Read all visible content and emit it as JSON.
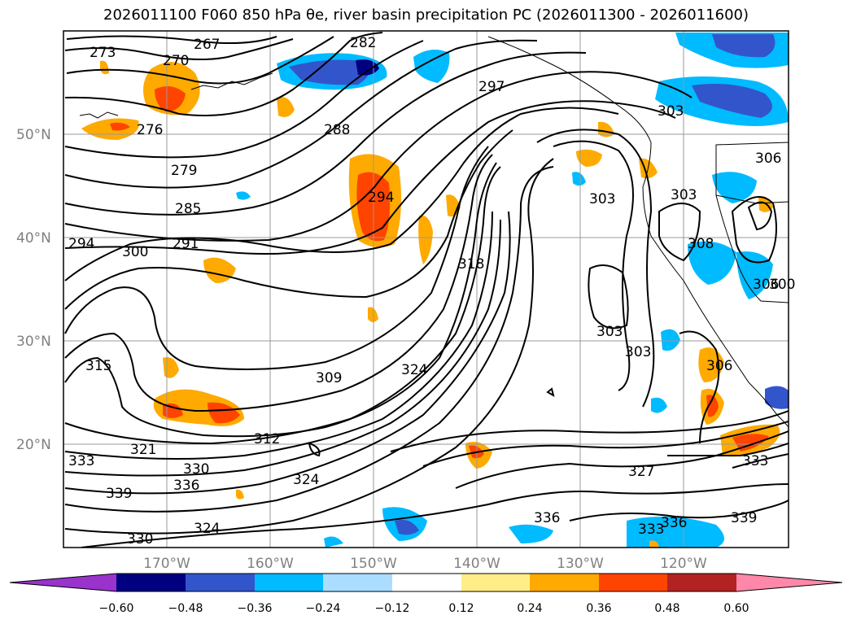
{
  "title": "2026011100 F060 850 hPa θe, river basin precipitation PC (2026011300 - 2026011600)",
  "latitude_labels": [
    "50°N",
    "40°N",
    "30°N",
    "20°N"
  ],
  "longitude_labels": [
    "170°W",
    "160°W",
    "150°W",
    "140°W",
    "130°W",
    "120°W"
  ],
  "contour_labels": [
    "267",
    "270",
    "273",
    "276",
    "279",
    "282",
    "285",
    "288",
    "291",
    "294",
    "294",
    "297",
    "300",
    "303",
    "303",
    "303",
    "303",
    "303",
    "306",
    "306",
    "308",
    "309",
    "312",
    "315",
    "318",
    "321",
    "324",
    "324",
    "324",
    "327",
    "330",
    "330",
    "333",
    "333",
    "333",
    "336",
    "336",
    "336",
    "339",
    "339",
    "300",
    "306"
  ],
  "colorbar": {
    "ticks": [
      "−0.60",
      "−0.48",
      "−0.36",
      "−0.24",
      "−0.12",
      "0.12",
      "0.24",
      "0.36",
      "0.48",
      "0.60"
    ],
    "colors": [
      "#9933cc",
      "#000080",
      "#3355cc",
      "#00bbff",
      "#aaddff",
      "#ffffff",
      "#ffee88",
      "#ffaa00",
      "#ff4400",
      "#b22222",
      "#ff88aa"
    ]
  },
  "palette": {
    "contour": "#000000",
    "grid": "#999999",
    "coast": "#000000"
  }
}
